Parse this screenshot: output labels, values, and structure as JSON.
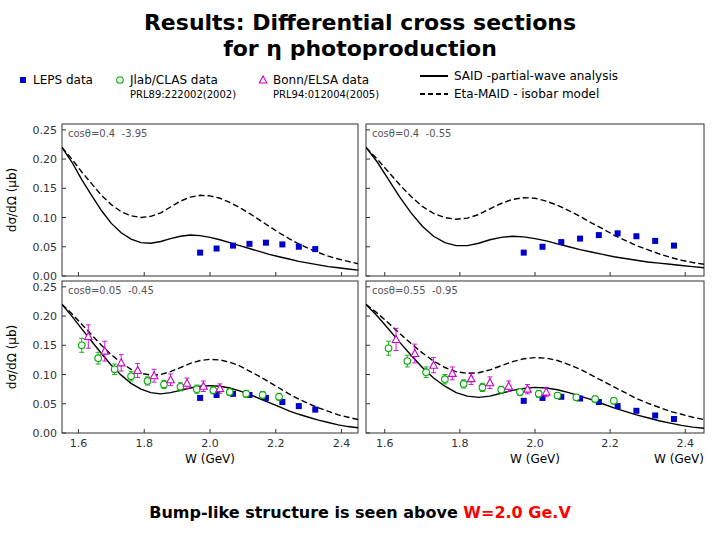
{
  "title": "Results: Differential cross sections",
  "subtitle": "for η photoproduction",
  "annotations": [
    {
      "text": "PRL89:222002(2002)",
      "series": "Jlab/CLAS data"
    },
    {
      "text": "PRL94:012004(2005)",
      "series": "Bonn/ELSA data"
    },
    {
      "text": "W (GeV)"
    },
    {
      "text": "Bump-like structure is seen above ",
      "color": "#000000"
    },
    {
      "text": "W=2.0 Ge.V",
      "color": "red"
    }
  ],
  "chart_data": [
    {
      "type": "line",
      "title": "cosθ=0.4  -3.95",
      "ylabel": "dσ/dΩ (μb)",
      "x": [
        1.55,
        1.58,
        1.61,
        1.64,
        1.67,
        1.7,
        1.73,
        1.76,
        1.79,
        1.82,
        1.85,
        1.88,
        1.91,
        1.94,
        1.97,
        2.0,
        2.03,
        2.06,
        2.09,
        2.12,
        2.15,
        2.18,
        2.21,
        2.24,
        2.27,
        2.3,
        2.33,
        2.36,
        2.39,
        2.42,
        2.45
      ],
      "xlim": [
        1.55,
        2.45
      ],
      "xticks": [
        1.6,
        1.8,
        {
          "value": 2.0,
          "label": "2.0"
        },
        2.2,
        2.4
      ],
      "ylim": [
        0,
        0.26
      ],
      "yticks": [
        {
          "value": 0,
          "label": "0.00"
        },
        0.05,
        {
          "value": 0.1,
          "label": "0.10"
        },
        0.15,
        {
          "value": 0.2,
          "label": "0.20"
        },
        0.25
      ],
      "tick_labels": "y",
      "series": [
        {
          "name": "SAID -partial-wave analysis",
          "color": "#000000",
          "line_style": "solid",
          "values": [
            0.22,
            0.195,
            0.165,
            0.138,
            0.112,
            0.09,
            0.074,
            0.063,
            0.057,
            0.056,
            0.059,
            0.064,
            0.068,
            0.07,
            0.069,
            0.066,
            0.062,
            0.057,
            0.052,
            0.047,
            0.042,
            0.037,
            0.033,
            0.029,
            0.025,
            0.022,
            0.019,
            0.016,
            0.014,
            0.012,
            0.01
          ]
        },
        {
          "name": "Eta-MAID - isobar model",
          "color": "#000000",
          "line_style": "dashed",
          "values": [
            0.22,
            0.2,
            0.178,
            0.158,
            0.138,
            0.122,
            0.11,
            0.103,
            0.1,
            0.102,
            0.108,
            0.118,
            0.128,
            0.135,
            0.138,
            0.137,
            0.133,
            0.126,
            0.117,
            0.107,
            0.096,
            0.085,
            0.074,
            0.064,
            0.055,
            0.047,
            0.04,
            0.034,
            0.029,
            0.025,
            0.021
          ]
        },
        {
          "name": "LEPS data",
          "type": "scatter",
          "marker": "square",
          "color": "#0000cc",
          "x": [
            1.97,
            2.02,
            2.07,
            2.12,
            2.17,
            2.22,
            2.27,
            2.32
          ],
          "values": [
            0.04,
            0.047,
            0.052,
            0.055,
            0.057,
            0.054,
            0.05,
            0.046
          ]
        }
      ]
    },
    {
      "type": "line",
      "title": "cosθ=0.4  -0.55",
      "x": [
        1.55,
        1.58,
        1.61,
        1.64,
        1.67,
        1.7,
        1.73,
        1.76,
        1.79,
        1.82,
        1.85,
        1.88,
        1.91,
        1.94,
        1.97,
        2.0,
        2.03,
        2.06,
        2.09,
        2.12,
        2.15,
        2.18,
        2.21,
        2.24,
        2.27,
        2.3,
        2.33,
        2.36,
        2.39,
        2.42,
        2.45
      ],
      "xlim": [
        1.55,
        2.45
      ],
      "xticks": [
        1.6,
        1.8,
        {
          "value": 2.0,
          "label": "2.0"
        },
        2.2,
        2.4
      ],
      "ylim": [
        0,
        0.26
      ],
      "yticks": [
        {
          "value": 0,
          "label": "0.00"
        },
        0.05,
        {
          "value": 0.1,
          "label": "0.10"
        },
        0.15,
        {
          "value": 0.2,
          "label": "0.20"
        },
        0.25
      ],
      "tick_labels": false,
      "series": [
        {
          "name": "SAID -partial-wave analysis",
          "color": "#000000",
          "line_style": "solid",
          "values": [
            0.22,
            0.195,
            0.165,
            0.135,
            0.108,
            0.085,
            0.068,
            0.057,
            0.052,
            0.052,
            0.056,
            0.062,
            0.066,
            0.068,
            0.067,
            0.064,
            0.06,
            0.055,
            0.05,
            0.045,
            0.041,
            0.037,
            0.033,
            0.03,
            0.027,
            0.024,
            0.022,
            0.02,
            0.018,
            0.016,
            0.014
          ]
        },
        {
          "name": "Eta-MAID - isobar model",
          "color": "#000000",
          "line_style": "dashed",
          "values": [
            0.22,
            0.2,
            0.178,
            0.156,
            0.136,
            0.119,
            0.107,
            0.1,
            0.097,
            0.099,
            0.105,
            0.115,
            0.124,
            0.131,
            0.134,
            0.133,
            0.128,
            0.121,
            0.112,
            0.102,
            0.091,
            0.081,
            0.07,
            0.061,
            0.052,
            0.045,
            0.038,
            0.032,
            0.027,
            0.023,
            0.02
          ]
        },
        {
          "name": "LEPS data",
          "type": "scatter",
          "marker": "square",
          "color": "#0000cc",
          "x": [
            1.97,
            2.02,
            2.07,
            2.12,
            2.17,
            2.22,
            2.27,
            2.32,
            2.37
          ],
          "values": [
            0.04,
            0.05,
            0.058,
            0.064,
            0.07,
            0.073,
            0.068,
            0.06,
            0.052
          ]
        }
      ]
    },
    {
      "type": "line",
      "title": "cosθ=0.05  -0.45",
      "xlabel": "W (GeV)",
      "ylabel": "dσ/dΩ (μb)",
      "x": [
        1.55,
        1.58,
        1.61,
        1.64,
        1.67,
        1.7,
        1.73,
        1.76,
        1.79,
        1.82,
        1.85,
        1.88,
        1.91,
        1.94,
        1.97,
        2.0,
        2.03,
        2.06,
        2.09,
        2.12,
        2.15,
        2.18,
        2.21,
        2.24,
        2.27,
        2.3,
        2.33,
        2.36,
        2.39,
        2.42,
        2.45
      ],
      "xlim": [
        1.55,
        2.45
      ],
      "xticks": [
        1.6,
        1.8,
        {
          "value": 2.0,
          "label": "2.0"
        },
        2.2,
        2.4
      ],
      "ylim": [
        0,
        0.26
      ],
      "yticks": [
        {
          "value": 0,
          "label": "0.00"
        },
        0.05,
        {
          "value": 0.1,
          "label": "0.10"
        },
        0.15,
        {
          "value": 0.2,
          "label": "0.20"
        },
        0.25
      ],
      "series": [
        {
          "name": "SAID -partial-wave analysis",
          "color": "#000000",
          "line_style": "solid",
          "values": [
            0.22,
            0.2,
            0.178,
            0.157,
            0.136,
            0.116,
            0.099,
            0.085,
            0.075,
            0.069,
            0.067,
            0.069,
            0.073,
            0.077,
            0.08,
            0.081,
            0.08,
            0.077,
            0.072,
            0.066,
            0.059,
            0.052,
            0.045,
            0.038,
            0.032,
            0.027,
            0.022,
            0.018,
            0.014,
            0.011,
            0.009
          ]
        },
        {
          "name": "Eta-MAID - isobar model",
          "color": "#000000",
          "line_style": "dashed",
          "values": [
            0.22,
            0.204,
            0.186,
            0.168,
            0.15,
            0.134,
            0.12,
            0.109,
            0.102,
            0.099,
            0.1,
            0.105,
            0.112,
            0.119,
            0.124,
            0.126,
            0.125,
            0.121,
            0.115,
            0.106,
            0.097,
            0.087,
            0.077,
            0.067,
            0.058,
            0.05,
            0.043,
            0.037,
            0.031,
            0.027,
            0.023
          ]
        },
        {
          "name": "LEPS data",
          "type": "scatter",
          "marker": "square",
          "color": "#0000cc",
          "x": [
            1.97,
            2.02,
            2.07,
            2.12,
            2.17,
            2.22,
            2.27,
            2.32
          ],
          "values": [
            0.06,
            0.065,
            0.067,
            0.065,
            0.06,
            0.053,
            0.046,
            0.04
          ]
        },
        {
          "name": "Jlab/CLAS data",
          "type": "scatter",
          "marker": "circle-open",
          "color": "#00aa00",
          "x": [
            1.61,
            1.66,
            1.71,
            1.76,
            1.81,
            1.86,
            1.91,
            1.96,
            2.01,
            2.06,
            2.11,
            2.16,
            2.21
          ],
          "values": [
            0.15,
            0.128,
            0.109,
            0.097,
            0.089,
            0.083,
            0.079,
            0.075,
            0.073,
            0.07,
            0.067,
            0.065,
            0.062
          ],
          "errors": [
            0.012,
            0.01,
            0.009,
            0.008,
            0.007,
            0.007,
            0.007,
            0.007,
            0.006,
            0.006,
            0.006,
            0.006,
            0.006
          ]
        },
        {
          "name": "Bonn/ELSA data",
          "type": "scatter",
          "marker": "triangle-open",
          "color": "#cc00cc",
          "x": [
            1.63,
            1.68,
            1.73,
            1.78,
            1.83,
            1.88,
            1.93,
            1.98,
            2.03
          ],
          "values": [
            0.165,
            0.14,
            0.12,
            0.107,
            0.098,
            0.091,
            0.085,
            0.08,
            0.076
          ],
          "errors": [
            0.02,
            0.017,
            0.014,
            0.012,
            0.011,
            0.01,
            0.009,
            0.009,
            0.008
          ]
        }
      ]
    },
    {
      "type": "line",
      "title": "cosθ=0.55  -0.95",
      "xlabel": "W (GeV)",
      "x": [
        1.55,
        1.58,
        1.61,
        1.64,
        1.67,
        1.7,
        1.73,
        1.76,
        1.79,
        1.82,
        1.85,
        1.88,
        1.91,
        1.94,
        1.97,
        2.0,
        2.03,
        2.06,
        2.09,
        2.12,
        2.15,
        2.18,
        2.21,
        2.24,
        2.27,
        2.3,
        2.33,
        2.36,
        2.39,
        2.42,
        2.45
      ],
      "xlim": [
        1.55,
        2.45
      ],
      "xticks": [
        1.6,
        1.8,
        {
          "value": 2.0,
          "label": "2.0"
        },
        2.2,
        2.4
      ],
      "ylim": [
        0,
        0.26
      ],
      "yticks": [
        {
          "value": 0,
          "label": "0.00"
        },
        0.05,
        {
          "value": 0.1,
          "label": "0.10"
        },
        0.15,
        {
          "value": 0.2,
          "label": "0.20"
        },
        0.25
      ],
      "tick_labels": "x",
      "series": [
        {
          "name": "SAID -partial-wave analysis",
          "color": "#000000",
          "line_style": "solid",
          "values": [
            0.22,
            0.2,
            0.178,
            0.155,
            0.133,
            0.112,
            0.094,
            0.08,
            0.069,
            0.063,
            0.061,
            0.063,
            0.068,
            0.073,
            0.076,
            0.078,
            0.077,
            0.074,
            0.069,
            0.063,
            0.057,
            0.05,
            0.043,
            0.037,
            0.031,
            0.026,
            0.021,
            0.017,
            0.013,
            0.01,
            0.008
          ]
        },
        {
          "name": "Eta-MAID - isobar model",
          "color": "#000000",
          "line_style": "dashed",
          "values": [
            0.22,
            0.205,
            0.188,
            0.17,
            0.153,
            0.137,
            0.123,
            0.112,
            0.105,
            0.102,
            0.103,
            0.108,
            0.115,
            0.122,
            0.127,
            0.129,
            0.128,
            0.124,
            0.117,
            0.109,
            0.099,
            0.089,
            0.079,
            0.069,
            0.059,
            0.051,
            0.044,
            0.037,
            0.032,
            0.027,
            0.023
          ]
        },
        {
          "name": "LEPS data",
          "type": "scatter",
          "marker": "square",
          "color": "#0000cc",
          "x": [
            1.97,
            2.02,
            2.07,
            2.12,
            2.17,
            2.22,
            2.27,
            2.32,
            2.37
          ],
          "values": [
            0.055,
            0.06,
            0.062,
            0.059,
            0.053,
            0.046,
            0.038,
            0.03,
            0.024
          ]
        },
        {
          "name": "Jlab/CLAS data",
          "type": "scatter",
          "marker": "circle-open",
          "color": "#00aa00",
          "x": [
            1.61,
            1.66,
            1.71,
            1.76,
            1.81,
            1.86,
            1.91,
            1.96,
            2.01,
            2.06,
            2.11,
            2.16,
            2.21
          ],
          "values": [
            0.145,
            0.123,
            0.104,
            0.092,
            0.084,
            0.078,
            0.074,
            0.07,
            0.067,
            0.064,
            0.061,
            0.058,
            0.055
          ],
          "errors": [
            0.012,
            0.01,
            0.009,
            0.008,
            0.007,
            0.007,
            0.006,
            0.006,
            0.006,
            0.005,
            0.005,
            0.005,
            0.005
          ]
        },
        {
          "name": "Bonn/ELSA data",
          "type": "scatter",
          "marker": "triangle-open",
          "color": "#cc00cc",
          "x": [
            1.63,
            1.68,
            1.73,
            1.78,
            1.83,
            1.88,
            1.93,
            1.98,
            2.03
          ],
          "values": [
            0.16,
            0.136,
            0.116,
            0.102,
            0.093,
            0.086,
            0.08,
            0.075,
            0.07
          ],
          "errors": [
            0.019,
            0.016,
            0.013,
            0.011,
            0.01,
            0.01,
            0.009,
            0.008,
            0.008
          ]
        }
      ]
    }
  ]
}
